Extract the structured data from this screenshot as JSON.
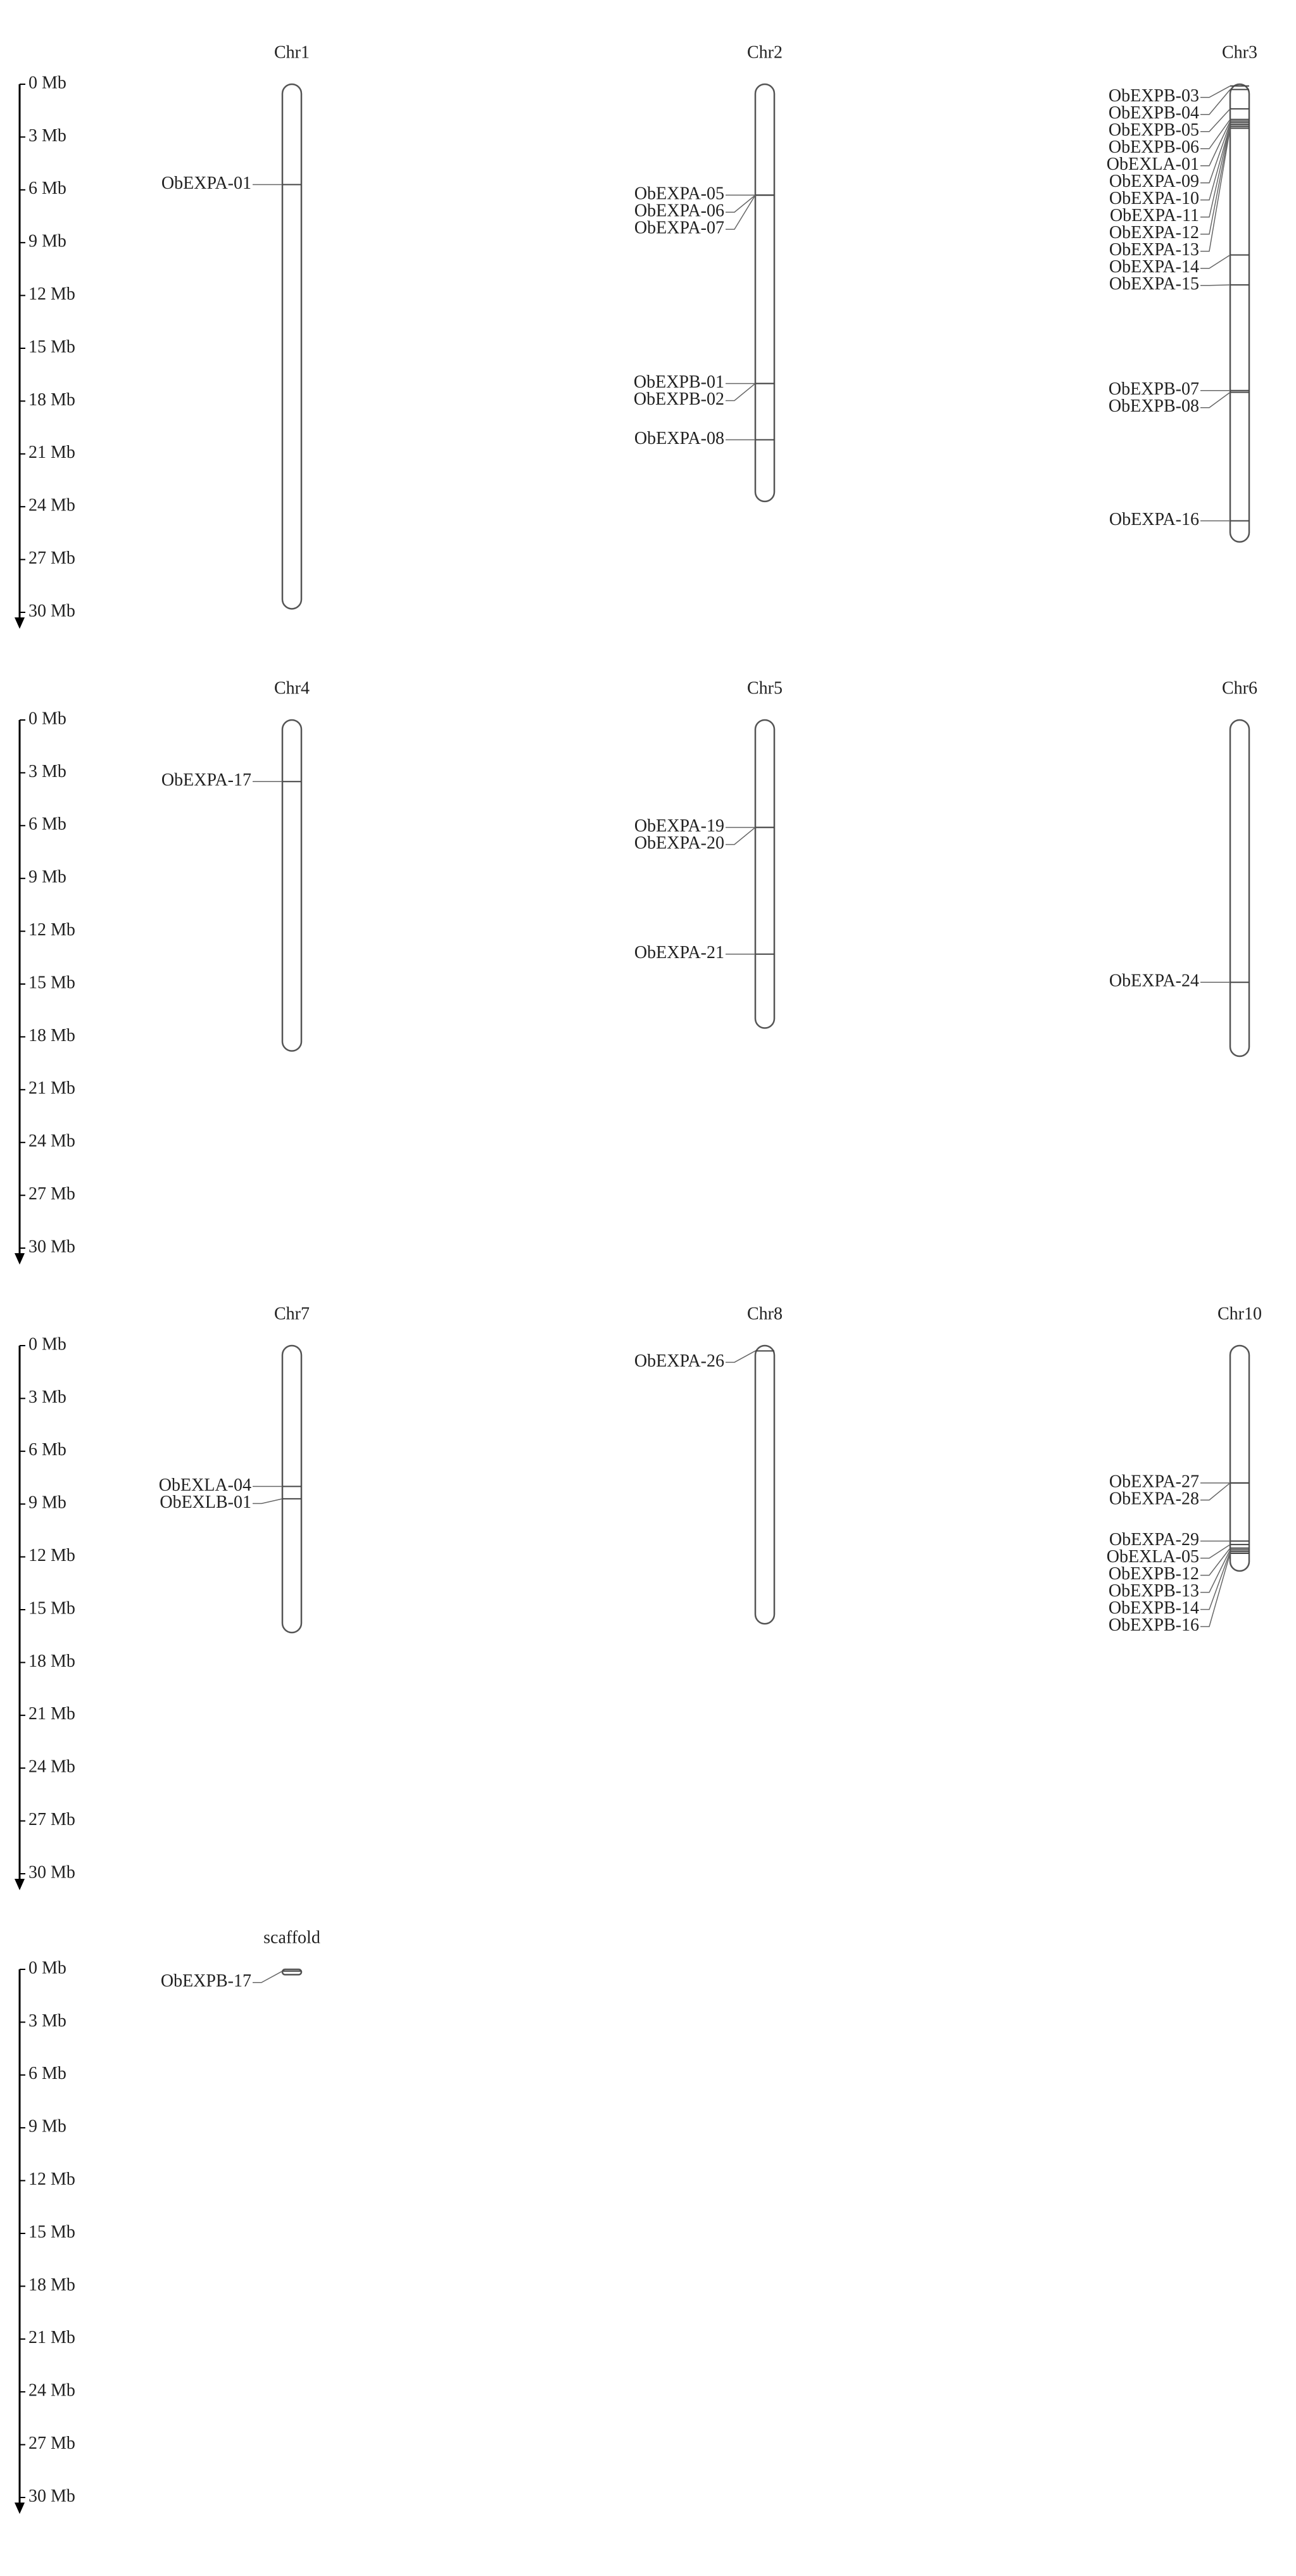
{
  "chart_data": {
    "type": "chromosome-map",
    "ylim": [
      0,
      30
    ],
    "yticks": [
      {
        "value": 0,
        "label": "0 Mb"
      },
      {
        "value": 3,
        "label": "3 Mb"
      },
      {
        "value": 6,
        "label": "6 Mb"
      },
      {
        "value": 9,
        "label": "9 Mb"
      },
      {
        "value": 12,
        "label": "12 Mb"
      },
      {
        "value": 15,
        "label": "15 Mb"
      },
      {
        "value": 18,
        "label": "18 Mb"
      },
      {
        "value": 21,
        "label": "21 Mb"
      },
      {
        "value": 24,
        "label": "24 Mb"
      },
      {
        "value": 27,
        "label": "27 Mb"
      },
      {
        "value": 30,
        "label": "30 Mb"
      }
    ],
    "chromosomes": [
      {
        "name": "Chr1",
        "length": 29.8,
        "genes": [
          {
            "name": "ObEXPA-01",
            "position": 5.7
          }
        ]
      },
      {
        "name": "Chr2",
        "length": 23.7,
        "genes": [
          {
            "name": "ObEXPA-05",
            "position": 6.3
          },
          {
            "name": "ObEXPA-06",
            "position": 6.3
          },
          {
            "name": "ObEXPA-07",
            "position": 6.3
          },
          {
            "name": "ObEXPB-01",
            "position": 17.0
          },
          {
            "name": "ObEXPB-02",
            "position": 17.0
          },
          {
            "name": "ObEXPA-08",
            "position": 20.2
          }
        ]
      },
      {
        "name": "Chr3",
        "length": 26.0,
        "genes": [
          {
            "name": "ObEXPB-03",
            "position": 0.1
          },
          {
            "name": "ObEXPB-04",
            "position": 0.3
          },
          {
            "name": "ObEXPB-05",
            "position": 1.4
          },
          {
            "name": "ObEXPB-06",
            "position": 2.0
          },
          {
            "name": "ObEXLA-01",
            "position": 2.1
          },
          {
            "name": "ObEXPA-09",
            "position": 2.2
          },
          {
            "name": "ObEXPA-10",
            "position": 2.3
          },
          {
            "name": "ObEXPA-11",
            "position": 2.3
          },
          {
            "name": "ObEXPA-12",
            "position": 2.4
          },
          {
            "name": "ObEXPA-13",
            "position": 2.5
          },
          {
            "name": "ObEXPA-14",
            "position": 9.7
          },
          {
            "name": "ObEXPA-15",
            "position": 11.4
          },
          {
            "name": "ObEXPB-07",
            "position": 17.4
          },
          {
            "name": "ObEXPB-08",
            "position": 17.5
          },
          {
            "name": "ObEXPA-16",
            "position": 24.8
          }
        ]
      },
      {
        "name": "Chr4",
        "length": 18.8,
        "genes": [
          {
            "name": "ObEXPA-17",
            "position": 3.5
          }
        ]
      },
      {
        "name": "Chr5",
        "length": 17.5,
        "genes": [
          {
            "name": "ObEXPA-19",
            "position": 6.1
          },
          {
            "name": "ObEXPA-20",
            "position": 6.1
          },
          {
            "name": "ObEXPA-21",
            "position": 13.3
          }
        ]
      },
      {
        "name": "Chr6",
        "length": 19.1,
        "genes": [
          {
            "name": "ObEXPA-24",
            "position": 14.9
          }
        ]
      },
      {
        "name": "Chr7",
        "length": 16.3,
        "genes": [
          {
            "name": "ObEXLA-04",
            "position": 8.0
          },
          {
            "name": "ObEXLB-01",
            "position": 8.7
          }
        ]
      },
      {
        "name": "Chr8",
        "length": 15.8,
        "genes": [
          {
            "name": "ObEXPA-26",
            "position": 0.3
          }
        ]
      },
      {
        "name": "Chr10",
        "length": 12.8,
        "genes": [
          {
            "name": "ObEXPA-27",
            "position": 7.8
          },
          {
            "name": "ObEXPA-28",
            "position": 7.8
          },
          {
            "name": "ObEXPA-29",
            "position": 11.1
          },
          {
            "name": "ObEXLA-05",
            "position": 11.3
          },
          {
            "name": "ObEXPB-12",
            "position": 11.5
          },
          {
            "name": "ObEXPB-13",
            "position": 11.6
          },
          {
            "name": "ObEXPB-14",
            "position": 11.7
          },
          {
            "name": "ObEXPB-16",
            "position": 11.8
          }
        ]
      },
      {
        "name": "scaffold",
        "length": 0.3,
        "genes": [
          {
            "name": "ObEXPB-17",
            "position": 0.1
          }
        ]
      }
    ]
  }
}
